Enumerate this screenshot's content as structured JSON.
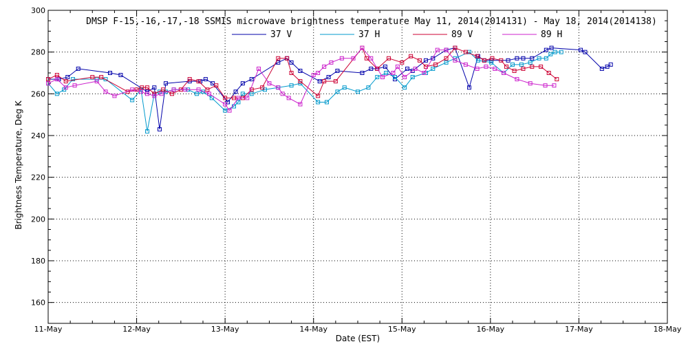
{
  "chart_data": {
    "type": "line",
    "title": "DMSP F-15,-16,-17,-18 SSMIS microwave brightness temperature May 11, 2014(2014131) - May 18, 2014(2014138)",
    "xlabel": "Date (EST)",
    "ylabel": "Brightness Temperature, Deg K",
    "xlim": [
      0,
      7
    ],
    "ylim": [
      150,
      300
    ],
    "yticks": [
      160,
      180,
      200,
      220,
      240,
      260,
      280,
      300
    ],
    "xtick_labels": [
      "11-May",
      "12-May",
      "13-May",
      "14-May",
      "15-May",
      "16-May",
      "17-May",
      "18-May"
    ],
    "grid": true,
    "legend_position": "top-center",
    "series": [
      {
        "name": "37 V",
        "color": "#0000aa",
        "x": [
          0.0,
          0.12,
          0.22,
          0.34,
          0.7,
          0.82,
          1.12,
          1.2,
          1.26,
          1.33,
          1.6,
          1.72,
          1.78,
          1.86,
          2.03,
          2.12,
          2.2,
          2.3,
          2.6,
          2.7,
          2.75,
          2.85,
          3.07,
          3.17,
          3.27,
          3.55,
          3.65,
          3.72,
          3.81,
          3.92,
          4.06,
          4.12,
          4.27,
          4.35,
          4.5,
          4.6,
          4.76,
          4.86,
          4.93,
          5.01,
          5.2,
          5.3,
          5.37,
          5.47,
          5.63,
          5.69,
          6.02,
          6.07,
          6.26,
          6.32,
          6.36
        ],
        "y": [
          267,
          267,
          268,
          272,
          270,
          269,
          261,
          263,
          243,
          265,
          266,
          266,
          267,
          265,
          256,
          261,
          265,
          267,
          275,
          277,
          275,
          271,
          266,
          268,
          271,
          270,
          272,
          272,
          273,
          267,
          272,
          271,
          276,
          277,
          281,
          282,
          263,
          278,
          276,
          276,
          276,
          277,
          277,
          277,
          281,
          282,
          281,
          280,
          272,
          273,
          274
        ]
      },
      {
        "name": "37 H",
        "color": "#0099cc",
        "x": [
          0.0,
          0.1,
          0.18,
          0.28,
          0.55,
          0.65,
          0.95,
          1.05,
          1.12,
          1.2,
          1.26,
          1.33,
          1.42,
          1.58,
          1.68,
          1.75,
          1.85,
          2.0,
          2.1,
          2.15,
          2.2,
          2.3,
          2.45,
          2.6,
          2.75,
          2.85,
          3.05,
          3.15,
          3.27,
          3.35,
          3.5,
          3.62,
          3.72,
          3.82,
          3.92,
          4.03,
          4.12,
          4.27,
          4.35,
          4.5,
          4.6,
          4.76,
          4.86,
          5.01,
          5.15,
          5.25,
          5.35,
          5.45,
          5.55,
          5.63,
          5.68,
          5.73,
          5.8
        ],
        "y": [
          265,
          260,
          262,
          267,
          267,
          267,
          257,
          262,
          242,
          260,
          261,
          261,
          262,
          262,
          260,
          261,
          258,
          252,
          254,
          256,
          260,
          260,
          262,
          263,
          264,
          265,
          256,
          256,
          261,
          263,
          261,
          263,
          268,
          270,
          268,
          263,
          268,
          270,
          272,
          275,
          277,
          280,
          276,
          275,
          270,
          274,
          274,
          275,
          277,
          277,
          279,
          280,
          280
        ]
      },
      {
        "name": "89 V",
        "color": "#cc0033",
        "x": [
          0.0,
          0.1,
          0.2,
          0.5,
          0.6,
          0.9,
          1.0,
          1.06,
          1.12,
          1.2,
          1.3,
          1.4,
          1.5,
          1.6,
          1.7,
          1.8,
          1.9,
          2.0,
          2.1,
          2.2,
          2.3,
          2.42,
          2.6,
          2.7,
          2.75,
          2.85,
          3.05,
          3.12,
          3.25,
          3.55,
          3.6,
          3.72,
          3.85,
          4.0,
          4.1,
          4.2,
          4.27,
          4.38,
          4.5,
          4.6,
          4.72,
          4.85,
          4.93,
          5.02,
          5.12,
          5.18,
          5.27,
          5.37,
          5.47,
          5.57,
          5.66,
          5.75
        ],
        "y": [
          267,
          269,
          266,
          268,
          268,
          261,
          262,
          263,
          263,
          260,
          262,
          260,
          262,
          267,
          266,
          262,
          264,
          258,
          258,
          258,
          262,
          263,
          277,
          277,
          270,
          266,
          259,
          266,
          266,
          282,
          277,
          272,
          277,
          275,
          278,
          276,
          273,
          274,
          277,
          282,
          280,
          278,
          276,
          277,
          276,
          273,
          271,
          272,
          273,
          273,
          270,
          267
        ]
      },
      {
        "name": "89 H",
        "color": "#cc22cc",
        "x": [
          0.0,
          0.1,
          0.2,
          0.3,
          0.55,
          0.65,
          0.75,
          0.95,
          1.05,
          1.12,
          1.2,
          1.28,
          1.42,
          1.55,
          1.7,
          1.82,
          2.0,
          2.05,
          2.15,
          2.25,
          2.38,
          2.5,
          2.6,
          2.65,
          2.72,
          2.85,
          3.0,
          3.05,
          3.12,
          3.2,
          3.32,
          3.45,
          3.55,
          3.65,
          3.78,
          3.9,
          3.95,
          4.03,
          4.15,
          4.25,
          4.4,
          4.5,
          4.6,
          4.72,
          4.85,
          4.95,
          5.05,
          5.15,
          5.3,
          5.45,
          5.62,
          5.72
        ],
        "y": [
          265,
          267,
          263,
          264,
          266,
          261,
          259,
          262,
          261,
          260,
          259,
          260,
          262,
          262,
          262,
          260,
          255,
          252,
          258,
          258,
          272,
          265,
          263,
          260,
          258,
          255,
          269,
          270,
          273,
          275,
          277,
          277,
          282,
          277,
          268,
          270,
          273,
          268,
          272,
          270,
          281,
          281,
          276,
          274,
          272,
          273,
          272,
          270,
          267,
          265,
          264,
          264
        ]
      }
    ]
  }
}
